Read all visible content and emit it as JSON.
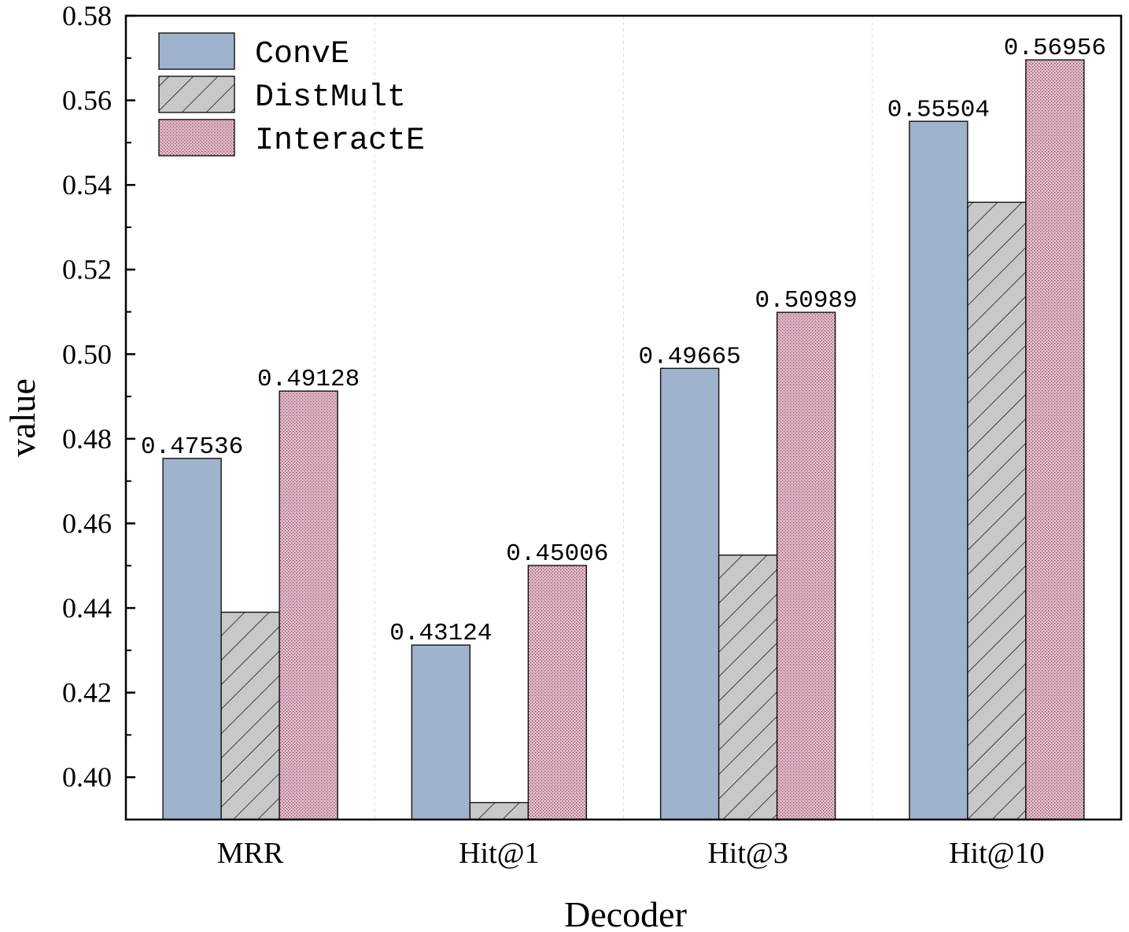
{
  "chart_data": {
    "type": "bar",
    "xlabel": "Decoder",
    "ylabel": "value",
    "ylim": [
      0.39,
      0.58
    ],
    "yticks": [
      "0.40",
      "0.42",
      "0.44",
      "0.46",
      "0.48",
      "0.50",
      "0.52",
      "0.54",
      "0.56",
      "0.58"
    ],
    "categories": [
      "MRR",
      "Hit@1",
      "Hit@3",
      "Hit@10"
    ],
    "legend_position": "top-left",
    "series": [
      {
        "name": "ConvE",
        "values": [
          0.47536,
          0.43124,
          0.49665,
          0.55504
        ],
        "labels": [
          "0.47536",
          "0.43124",
          "0.49665",
          "0.55504"
        ],
        "color": "#9fb3cc",
        "pattern": "solid"
      },
      {
        "name": "DistMult",
        "values": [
          0.439,
          0.394,
          0.4525,
          0.5359
        ],
        "labels": [],
        "color": "#c8c8c8",
        "pattern": "diagonal-hatch"
      },
      {
        "name": "InteractE",
        "values": [
          0.49128,
          0.45006,
          0.50989,
          0.56956
        ],
        "labels": [
          "0.49128",
          "0.45006",
          "0.50989",
          "0.56956"
        ],
        "color": "#e3b7c9",
        "pattern": "dots"
      }
    ]
  }
}
